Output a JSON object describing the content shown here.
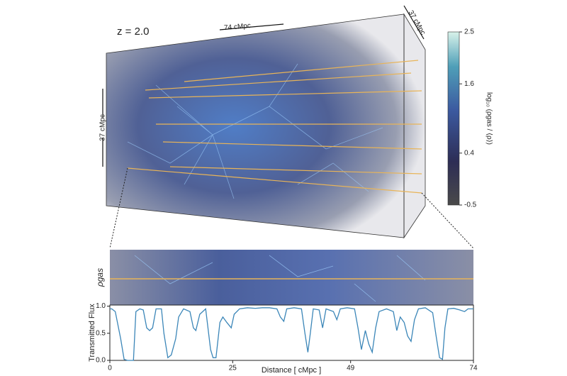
{
  "figure": {
    "redshift": "z = 2.0",
    "box_length": "74 cMpc",
    "box_depth": "37 cMpc",
    "box_height": "37 cMpc",
    "strip_label": "ρgas"
  },
  "colorbar": {
    "label": "log₁₀ (ρgas / ⟨ρ⟩)",
    "lim": [
      -0.5,
      2.5
    ],
    "ticks": [
      2.5,
      1.6,
      0.4,
      -0.5
    ]
  },
  "chart_data": {
    "type": "line",
    "ylabel": "Transmitted Flux",
    "xlabel": "Distance  [ cMpc ]",
    "color": "#3b86b8",
    "xlim": [
      0,
      74
    ],
    "xticks": [
      0,
      25,
      49,
      74
    ],
    "ylim": [
      0,
      1.02
    ],
    "yticks": [
      {
        "value": 0,
        "label": "0.0"
      },
      {
        "value": 0.5,
        "label": "0.5"
      },
      {
        "value": 1,
        "label": "1.0"
      }
    ],
    "x": [
      0,
      0.4,
      1.1,
      2.2,
      2.9,
      3.6,
      4.8,
      5.3,
      6.1,
      6.8,
      7.5,
      8.1,
      8.7,
      9.4,
      10.5,
      11.0,
      11.8,
      12.5,
      13.4,
      14.0,
      15.0,
      16.3,
      17.0,
      17.5,
      18.3,
      19.5,
      20.5,
      21.0,
      21.6,
      22.4,
      23.0,
      23.8,
      24.7,
      25.3,
      26.4,
      28.0,
      29.6,
      31.0,
      32.5,
      34.0,
      34.7,
      35.4,
      36.0,
      37.5,
      39.0,
      39.7,
      40.3,
      40.8,
      41.4,
      42.6,
      43.3,
      44.0,
      45.5,
      46.2,
      46.9,
      48.3,
      49.8,
      50.5,
      51.2,
      52.0,
      52.7,
      53.4,
      54.1,
      54.8,
      56.3,
      57.7,
      58.4,
      59.1,
      59.9,
      60.6,
      61.3,
      62.0,
      62.8,
      64.2,
      65.7,
      66.4,
      67.1,
      67.7,
      68.2,
      68.8,
      70.0,
      71.2,
      72.2,
      72.9,
      74.0
    ],
    "values": [
      0.95,
      0.95,
      0.9,
      0.4,
      0.02,
      0.0,
      0.0,
      0.9,
      0.95,
      0.93,
      0.6,
      0.55,
      0.6,
      0.95,
      0.95,
      0.5,
      0.05,
      0.1,
      0.4,
      0.8,
      0.95,
      0.9,
      0.6,
      0.55,
      0.85,
      0.95,
      0.2,
      0.05,
      0.05,
      0.7,
      0.8,
      0.7,
      0.6,
      0.85,
      0.95,
      0.97,
      0.96,
      0.97,
      0.97,
      0.95,
      0.8,
      0.72,
      0.95,
      0.97,
      0.95,
      0.5,
      0.15,
      0.5,
      0.95,
      0.93,
      0.6,
      0.95,
      0.9,
      0.75,
      0.95,
      0.97,
      0.95,
      0.6,
      0.2,
      0.55,
      0.3,
      0.15,
      0.6,
      0.9,
      0.95,
      0.9,
      0.55,
      0.8,
      0.7,
      0.45,
      0.35,
      0.75,
      0.95,
      0.97,
      0.88,
      0.45,
      0.05,
      0.02,
      0.6,
      0.95,
      0.96,
      0.93,
      0.9,
      0.95,
      0.95
    ]
  }
}
